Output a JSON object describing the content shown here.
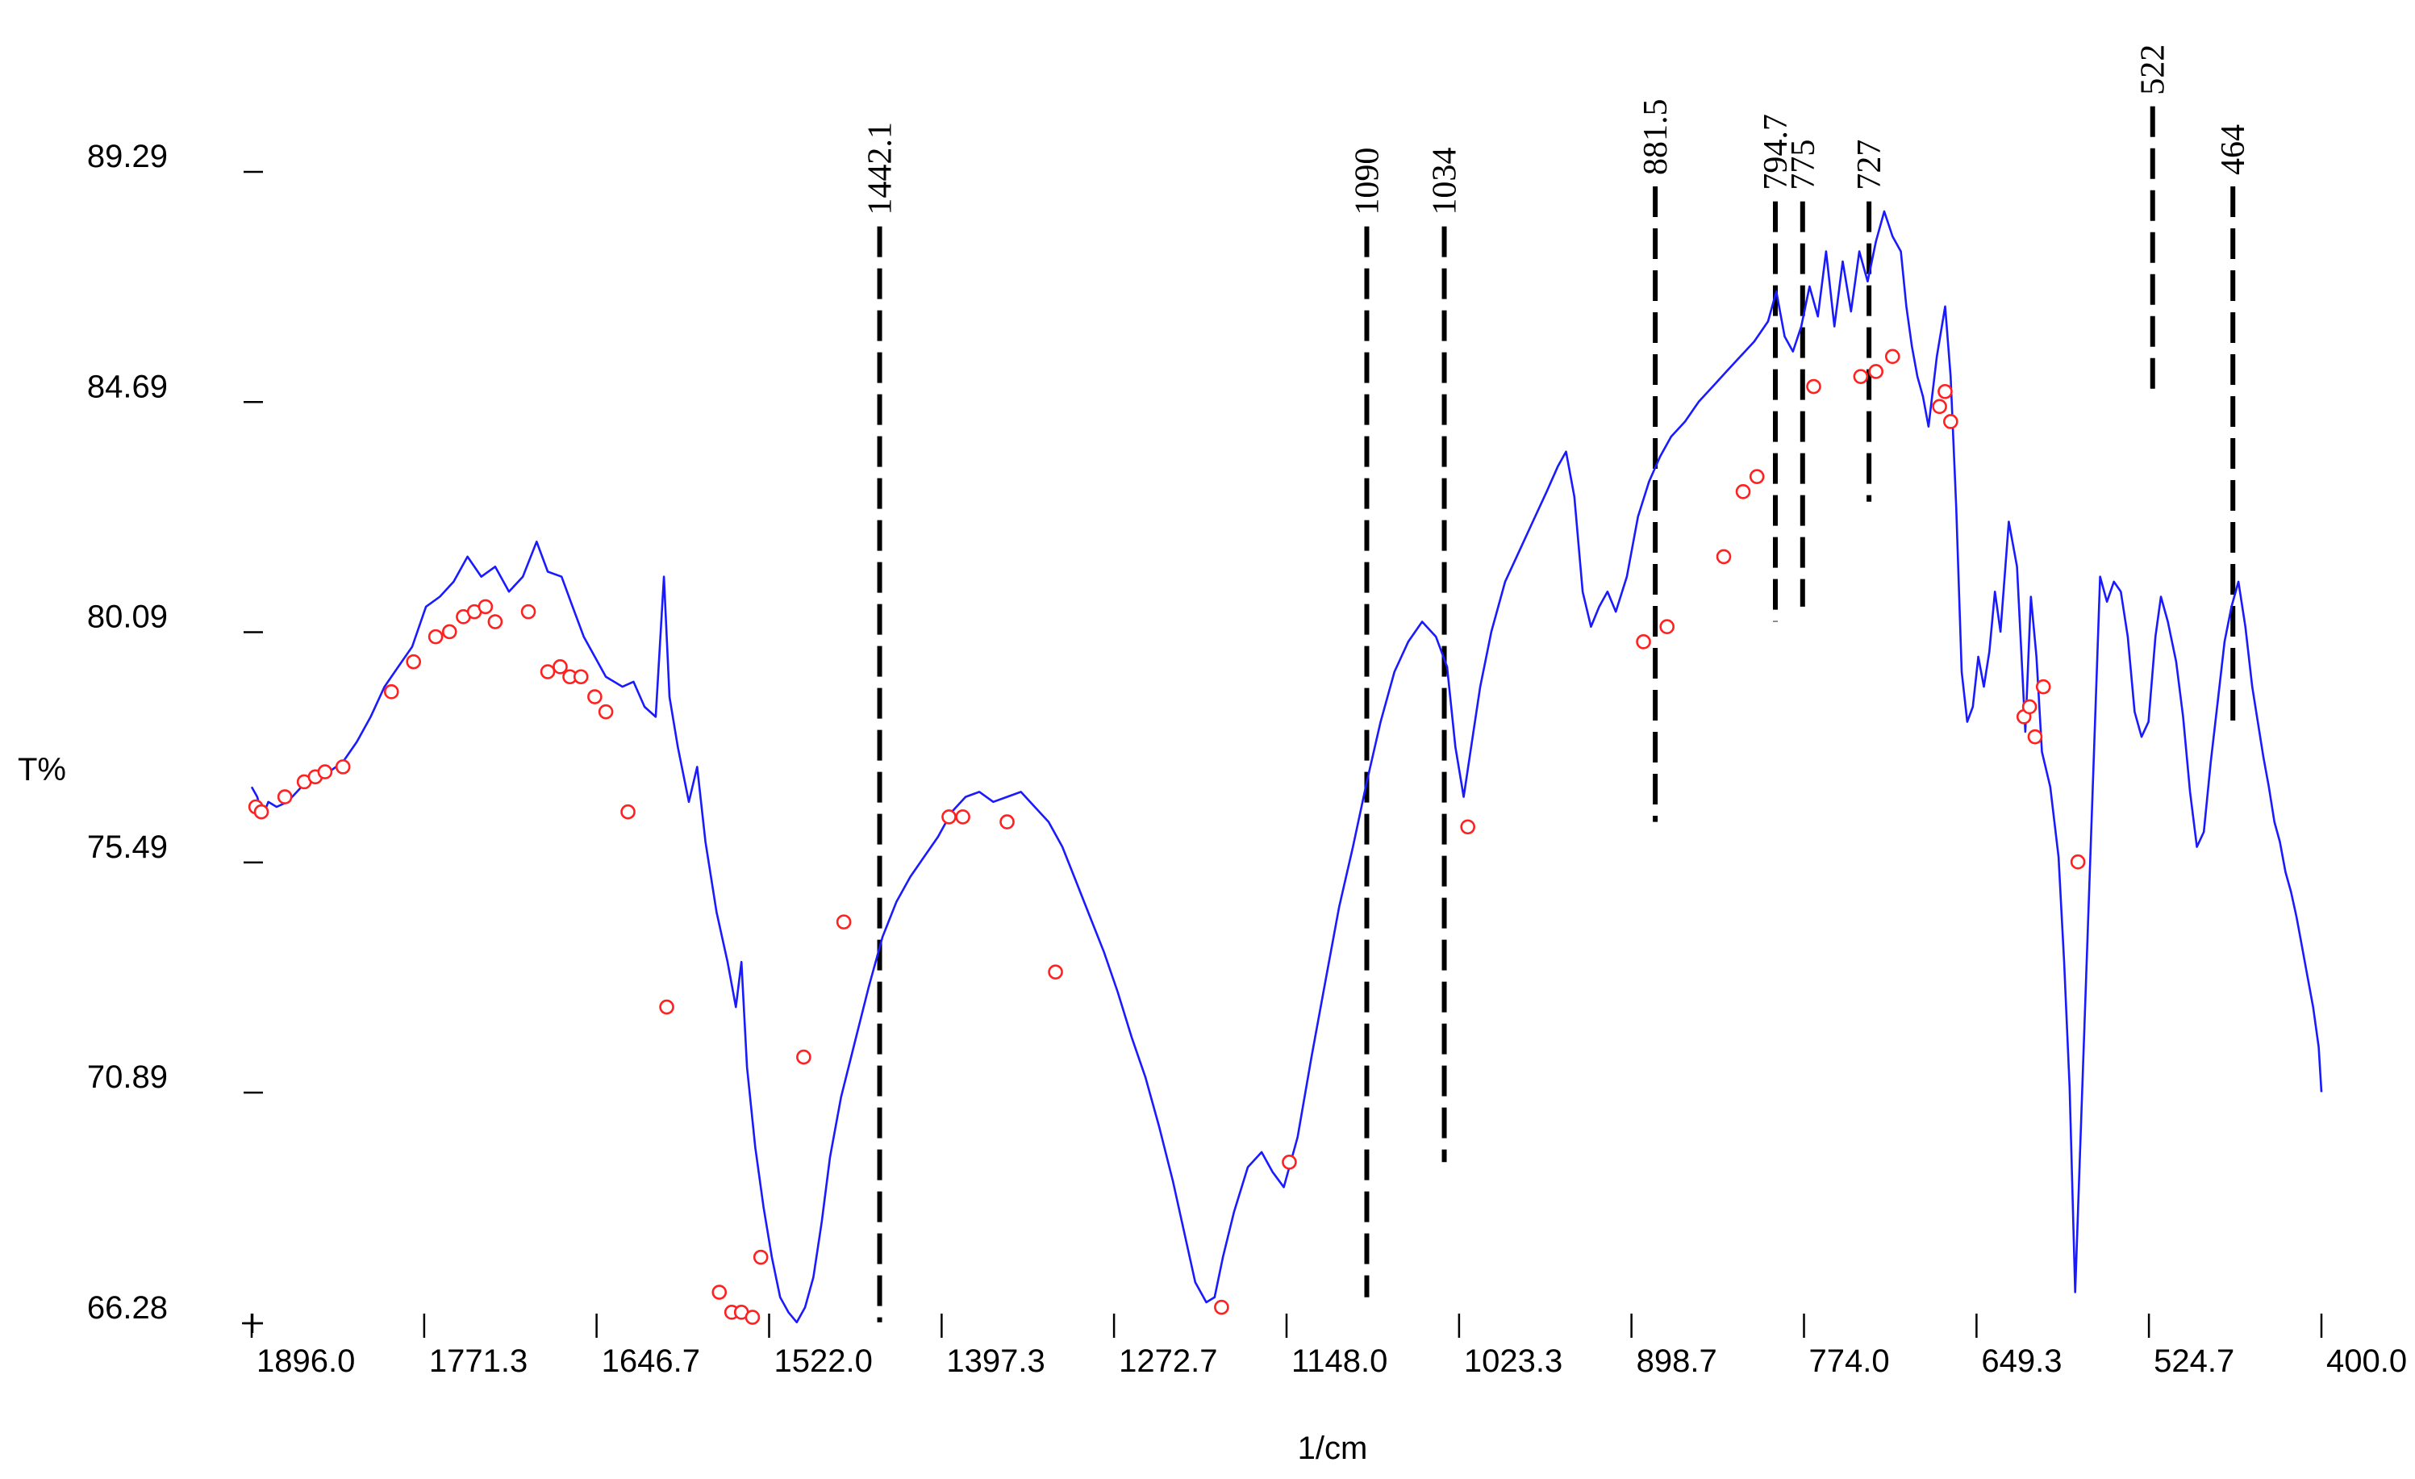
{
  "chart_data": {
    "type": "line",
    "xlabel": "1/cm",
    "ylabel": "T%",
    "xlim": [
      1896.0,
      400.0
    ],
    "ylim": [
      66.28,
      89.29
    ],
    "x_reversed": true,
    "grid": false,
    "x_ticks": [
      "1896.0",
      "1771.3",
      "1646.7",
      "1522.0",
      "1397.3",
      "1272.7",
      "1148.0",
      "1023.3",
      "898.7",
      "774.0",
      "649.3",
      "524.7",
      "400.0"
    ],
    "y_ticks": [
      "89.29",
      "84.69",
      "80.09",
      "75.49",
      "70.89",
      "66.28"
    ],
    "series_color": "#1a1aff",
    "marker_color": "#ff2020",
    "peak_line_color": "#000000",
    "spectrum": [
      [
        1896,
        77.0
      ],
      [
        1892,
        76.8
      ],
      [
        1888,
        76.4
      ],
      [
        1884,
        76.7
      ],
      [
        1878,
        76.6
      ],
      [
        1870,
        76.7
      ],
      [
        1860,
        77.0
      ],
      [
        1850,
        77.2
      ],
      [
        1840,
        77.3
      ],
      [
        1830,
        77.5
      ],
      [
        1820,
        77.9
      ],
      [
        1810,
        78.4
      ],
      [
        1800,
        79.0
      ],
      [
        1790,
        79.4
      ],
      [
        1780,
        79.8
      ],
      [
        1770,
        80.6
      ],
      [
        1760,
        80.8
      ],
      [
        1750,
        81.1
      ],
      [
        1740,
        81.6
      ],
      [
        1730,
        81.2
      ],
      [
        1720,
        81.4
      ],
      [
        1710,
        80.9
      ],
      [
        1700,
        81.2
      ],
      [
        1690,
        81.9
      ],
      [
        1682,
        81.3
      ],
      [
        1672,
        81.2
      ],
      [
        1664,
        80.6
      ],
      [
        1656,
        80.0
      ],
      [
        1648,
        79.6
      ],
      [
        1640,
        79.2
      ],
      [
        1628,
        79.0
      ],
      [
        1620,
        79.1
      ],
      [
        1612,
        78.6
      ],
      [
        1604,
        78.4
      ],
      [
        1598,
        81.2
      ],
      [
        1594,
        78.8
      ],
      [
        1588,
        77.8
      ],
      [
        1580,
        76.7
      ],
      [
        1574,
        77.4
      ],
      [
        1568,
        75.9
      ],
      [
        1560,
        74.5
      ],
      [
        1552,
        73.5
      ],
      [
        1546,
        72.6
      ],
      [
        1542,
        73.5
      ],
      [
        1538,
        71.4
      ],
      [
        1532,
        69.8
      ],
      [
        1526,
        68.6
      ],
      [
        1520,
        67.6
      ],
      [
        1514,
        66.8
      ],
      [
        1508,
        66.5
      ],
      [
        1502,
        66.3
      ],
      [
        1496,
        66.6
      ],
      [
        1490,
        67.2
      ],
      [
        1484,
        68.3
      ],
      [
        1478,
        69.6
      ],
      [
        1470,
        70.8
      ],
      [
        1460,
        71.9
      ],
      [
        1450,
        73.0
      ],
      [
        1440,
        74.0
      ],
      [
        1430,
        74.7
      ],
      [
        1420,
        75.2
      ],
      [
        1410,
        75.6
      ],
      [
        1400,
        76.0
      ],
      [
        1390,
        76.5
      ],
      [
        1380,
        76.8
      ],
      [
        1370,
        76.9
      ],
      [
        1360,
        76.7
      ],
      [
        1350,
        76.8
      ],
      [
        1340,
        76.9
      ],
      [
        1330,
        76.6
      ],
      [
        1320,
        76.3
      ],
      [
        1310,
        75.8
      ],
      [
        1300,
        75.1
      ],
      [
        1290,
        74.4
      ],
      [
        1280,
        73.7
      ],
      [
        1270,
        72.9
      ],
      [
        1260,
        72.0
      ],
      [
        1250,
        71.2
      ],
      [
        1240,
        70.2
      ],
      [
        1230,
        69.1
      ],
      [
        1222,
        68.1
      ],
      [
        1214,
        67.1
      ],
      [
        1206,
        66.7
      ],
      [
        1200,
        66.8
      ],
      [
        1194,
        67.6
      ],
      [
        1186,
        68.5
      ],
      [
        1176,
        69.4
      ],
      [
        1166,
        69.7
      ],
      [
        1158,
        69.3
      ],
      [
        1150,
        69.0
      ],
      [
        1140,
        70.0
      ],
      [
        1130,
        71.6
      ],
      [
        1120,
        73.1
      ],
      [
        1110,
        74.6
      ],
      [
        1100,
        75.8
      ],
      [
        1090,
        77.1
      ],
      [
        1080,
        78.3
      ],
      [
        1070,
        79.3
      ],
      [
        1060,
        79.9
      ],
      [
        1050,
        80.3
      ],
      [
        1040,
        80.0
      ],
      [
        1032,
        79.4
      ],
      [
        1026,
        77.8
      ],
      [
        1020,
        76.8
      ],
      [
        1014,
        77.9
      ],
      [
        1008,
        79.0
      ],
      [
        1000,
        80.1
      ],
      [
        990,
        81.1
      ],
      [
        980,
        81.7
      ],
      [
        970,
        82.3
      ],
      [
        960,
        82.9
      ],
      [
        952,
        83.4
      ],
      [
        946,
        83.7
      ],
      [
        940,
        82.8
      ],
      [
        934,
        80.9
      ],
      [
        928,
        80.2
      ],
      [
        922,
        80.6
      ],
      [
        916,
        80.9
      ],
      [
        910,
        80.5
      ],
      [
        902,
        81.2
      ],
      [
        894,
        82.4
      ],
      [
        886,
        83.1
      ],
      [
        878,
        83.6
      ],
      [
        870,
        84.0
      ],
      [
        860,
        84.3
      ],
      [
        850,
        84.7
      ],
      [
        840,
        85.0
      ],
      [
        830,
        85.3
      ],
      [
        820,
        85.6
      ],
      [
        810,
        85.9
      ],
      [
        800,
        86.3
      ],
      [
        794,
        86.9
      ],
      [
        788,
        86.0
      ],
      [
        782,
        85.7
      ],
      [
        776,
        86.2
      ],
      [
        770,
        87.0
      ],
      [
        764,
        86.4
      ],
      [
        758,
        87.7
      ],
      [
        752,
        86.2
      ],
      [
        746,
        87.5
      ],
      [
        740,
        86.5
      ],
      [
        734,
        87.7
      ],
      [
        728,
        87.1
      ],
      [
        722,
        87.9
      ],
      [
        716,
        88.5
      ],
      [
        710,
        88.0
      ],
      [
        704,
        87.7
      ],
      [
        700,
        86.6
      ],
      [
        696,
        85.8
      ],
      [
        692,
        85.2
      ],
      [
        688,
        84.8
      ],
      [
        684,
        84.2
      ],
      [
        678,
        85.6
      ],
      [
        672,
        86.6
      ],
      [
        668,
        85.2
      ],
      [
        664,
        82.6
      ],
      [
        660,
        79.3
      ],
      [
        656,
        78.3
      ],
      [
        652,
        78.6
      ],
      [
        648,
        79.6
      ],
      [
        644,
        79.0
      ],
      [
        640,
        79.7
      ],
      [
        636,
        80.9
      ],
      [
        632,
        80.1
      ],
      [
        626,
        82.3
      ],
      [
        620,
        81.4
      ],
      [
        614,
        78.1
      ],
      [
        610,
        80.8
      ],
      [
        606,
        79.6
      ],
      [
        602,
        77.7
      ],
      [
        596,
        77.0
      ],
      [
        590,
        75.6
      ],
      [
        586,
        73.5
      ],
      [
        582,
        71.0
      ],
      [
        578,
        66.9
      ],
      [
        560,
        81.2
      ],
      [
        555,
        80.7
      ],
      [
        550,
        81.1
      ],
      [
        545,
        80.9
      ],
      [
        540,
        80.0
      ],
      [
        535,
        78.5
      ],
      [
        530,
        78.0
      ],
      [
        525,
        78.3
      ],
      [
        520,
        80.0
      ],
      [
        516,
        80.8
      ],
      [
        511,
        80.3
      ],
      [
        505,
        79.5
      ],
      [
        500,
        78.4
      ],
      [
        495,
        76.9
      ],
      [
        490,
        75.8
      ],
      [
        485,
        76.1
      ],
      [
        480,
        77.5
      ],
      [
        475,
        78.7
      ],
      [
        470,
        79.9
      ],
      [
        465,
        80.6
      ],
      [
        460,
        81.1
      ],
      [
        455,
        80.2
      ],
      [
        450,
        79.0
      ],
      [
        446,
        78.3
      ],
      [
        442,
        77.6
      ],
      [
        438,
        77.0
      ],
      [
        434,
        76.3
      ],
      [
        430,
        75.9
      ],
      [
        426,
        75.3
      ],
      [
        422,
        74.9
      ],
      [
        418,
        74.4
      ],
      [
        414,
        73.8
      ],
      [
        410,
        73.2
      ],
      [
        406,
        72.6
      ],
      [
        402,
        71.8
      ],
      [
        400,
        70.9
      ]
    ],
    "markers": [
      [
        1893,
        76.6
      ],
      [
        1889,
        76.5
      ],
      [
        1872,
        76.8
      ],
      [
        1858,
        77.1
      ],
      [
        1850,
        77.2
      ],
      [
        1843,
        77.3
      ],
      [
        1830,
        77.4
      ],
      [
        1795,
        78.9
      ],
      [
        1779,
        79.5
      ],
      [
        1763,
        80.0
      ],
      [
        1753,
        80.1
      ],
      [
        1743,
        80.4
      ],
      [
        1735,
        80.5
      ],
      [
        1727,
        80.6
      ],
      [
        1720,
        80.3
      ],
      [
        1696,
        80.5
      ],
      [
        1682,
        79.3
      ],
      [
        1673,
        79.4
      ],
      [
        1666,
        79.2
      ],
      [
        1658,
        79.2
      ],
      [
        1648,
        78.8
      ],
      [
        1640,
        78.5
      ],
      [
        1624,
        76.5
      ],
      [
        1596,
        72.6
      ],
      [
        1558,
        66.9
      ],
      [
        1549,
        66.5
      ],
      [
        1542,
        66.5
      ],
      [
        1534,
        66.4
      ],
      [
        1528,
        67.6
      ],
      [
        1497,
        71.6
      ],
      [
        1468,
        74.3
      ],
      [
        1392,
        76.4
      ],
      [
        1382,
        76.4
      ],
      [
        1350,
        76.3
      ],
      [
        1315,
        73.3
      ],
      [
        1195,
        66.6
      ],
      [
        1146,
        69.5
      ],
      [
        1017,
        76.2
      ],
      [
        890,
        79.9
      ],
      [
        873,
        80.2
      ],
      [
        832,
        81.6
      ],
      [
        818,
        82.9
      ],
      [
        808,
        83.2
      ],
      [
        767,
        85.0
      ],
      [
        733,
        85.2
      ],
      [
        722,
        85.3
      ],
      [
        710,
        85.6
      ],
      [
        676,
        84.6
      ],
      [
        672,
        84.9
      ],
      [
        668,
        84.3
      ],
      [
        615,
        78.4
      ],
      [
        611,
        78.6
      ],
      [
        607,
        78.0
      ],
      [
        601,
        79.0
      ],
      [
        576,
        75.5
      ]
    ],
    "peaks": [
      {
        "label": "1442.1",
        "x": 1442.1,
        "line_top_y": 88.2,
        "line_bottom_y": 66.3
      },
      {
        "label": "1090",
        "x": 1090,
        "line_top_y": 88.2,
        "line_bottom_y": 66.8
      },
      {
        "label": "1034",
        "x": 1034,
        "line_top_y": 88.2,
        "line_bottom_y": 69.5
      },
      {
        "label": "881.5",
        "x": 881.5,
        "line_top_y": 89.0,
        "line_bottom_y": 76.3
      },
      {
        "label": "794.7",
        "x": 794.7,
        "line_top_y": 88.7,
        "line_bottom_y": 80.3
      },
      {
        "label": "775",
        "x": 775,
        "line_top_y": 88.7,
        "line_bottom_y": 80.6
      },
      {
        "label": "727",
        "x": 727,
        "line_top_y": 88.7,
        "line_bottom_y": 82.7
      },
      {
        "label": "522",
        "x": 522,
        "line_top_y": 90.6,
        "line_bottom_y": 84.9
      },
      {
        "label": "464",
        "x": 464,
        "line_top_y": 89.0,
        "line_bottom_y": 78.3
      }
    ]
  }
}
